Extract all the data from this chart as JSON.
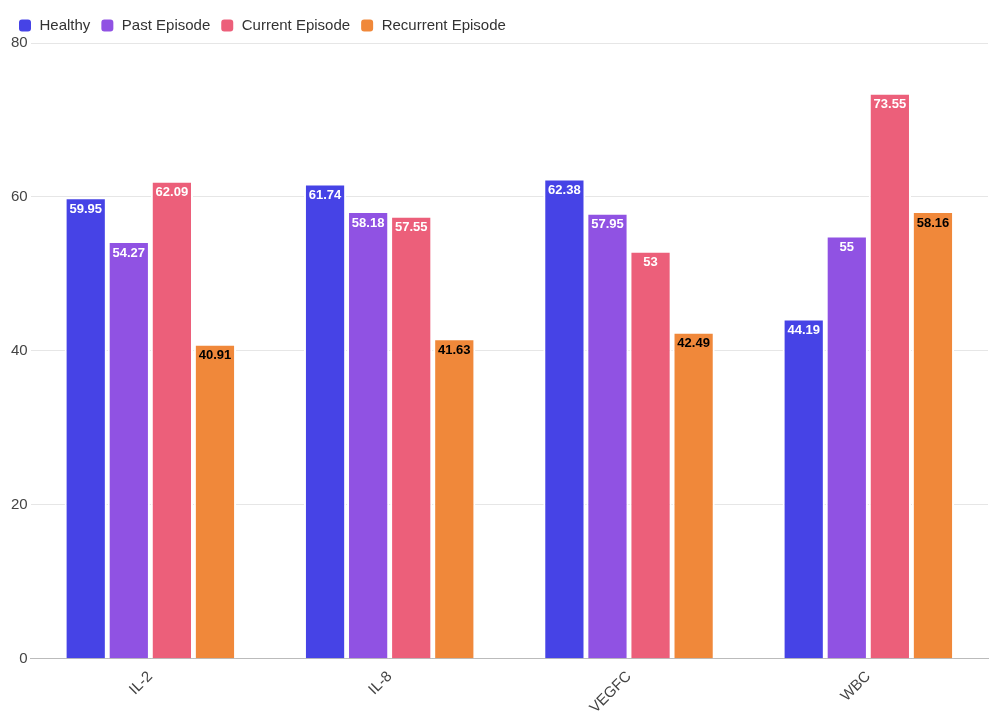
{
  "chart_data": {
    "type": "bar",
    "categories": [
      "IL-2",
      "IL-8",
      "VEGFC",
      "WBC"
    ],
    "series": [
      {
        "name": "Healthy",
        "color": "#4643e6",
        "values": [
          59.95,
          61.74,
          62.38,
          44.19
        ]
      },
      {
        "name": "Past Episode",
        "color": "#9052e3",
        "values": [
          54.27,
          58.18,
          57.95,
          55
        ]
      },
      {
        "name": "Current Episode",
        "color": "#ec5f7a",
        "values": [
          62.09,
          57.55,
          53,
          73.55
        ]
      },
      {
        "name": "Recurrent Episode",
        "color": "#f0883a",
        "values": [
          40.91,
          41.63,
          42.49,
          58.16
        ]
      }
    ],
    "ylim": [
      0,
      80
    ],
    "yticks": [
      0,
      20,
      40,
      60,
      80
    ],
    "grid": "y",
    "legend": "top left",
    "data_labels": true
  }
}
